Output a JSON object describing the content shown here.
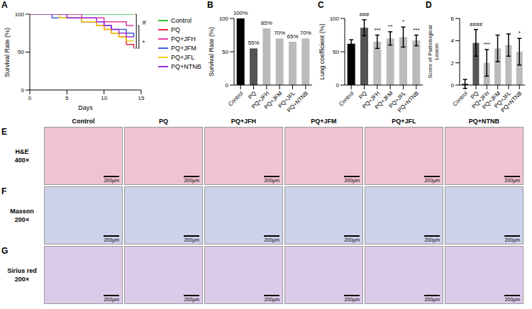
{
  "chart_data": [
    {
      "panel": "A",
      "type": "line",
      "line_style": "step",
      "x_label": "Days",
      "y_label": "Survival Rate (%)",
      "x": [
        0,
        3,
        4,
        5,
        7,
        9,
        10,
        11,
        12,
        13,
        14
      ],
      "xlim": [
        0,
        15
      ],
      "xticks": [
        0,
        5,
        10,
        15
      ],
      "ylim": [
        0,
        100
      ],
      "yticks": [
        0,
        50,
        100
      ],
      "legend": "right",
      "series": [
        {
          "name": "Control",
          "color": "#2fbf3a",
          "values": [
            100,
            100,
            100,
            100,
            100,
            100,
            100,
            100,
            100,
            100,
            100
          ]
        },
        {
          "name": "PQ",
          "color": "#e8253f",
          "values": [
            100,
            100,
            100,
            95,
            90,
            85,
            80,
            75,
            70,
            60,
            55
          ]
        },
        {
          "name": "PQ+JFH",
          "color": "#e33ba3",
          "values": [
            100,
            100,
            100,
            100,
            95,
            95,
            90,
            90,
            90,
            85,
            85
          ]
        },
        {
          "name": "PQ+JFM",
          "color": "#3f5fd6",
          "values": [
            100,
            95,
            95,
            95,
            90,
            90,
            85,
            80,
            80,
            75,
            70
          ]
        },
        {
          "name": "PQ+JFL",
          "color": "#f2cf00",
          "values": [
            100,
            100,
            95,
            95,
            90,
            85,
            80,
            75,
            70,
            65,
            65
          ]
        },
        {
          "name": "PQ+NTNB",
          "color": "#9b2fd6",
          "values": [
            100,
            100,
            100,
            95,
            95,
            90,
            85,
            80,
            75,
            70,
            70
          ]
        }
      ],
      "annotations": [
        {
          "text": "#",
          "from": "Control",
          "to": "PQ"
        },
        {
          "text": "*",
          "from": "PQ+JFH",
          "to": "PQ"
        }
      ]
    },
    {
      "panel": "B",
      "type": "bar",
      "y_label": "Survival Rate (%)",
      "categories": [
        "Control",
        "PQ",
        "PQ+JFH",
        "PQ+JFM",
        "PQ+JFL",
        "PQ+NTNB"
      ],
      "values": [
        100,
        55,
        85,
        70,
        65,
        70
      ],
      "value_labels": [
        "100%",
        "55%",
        "85%",
        "70%",
        "65%",
        "70%"
      ],
      "data_labels": true,
      "ylim": [
        0,
        100
      ],
      "yticks": [
        0,
        50,
        100
      ],
      "colors": [
        "#000000",
        "#555555",
        "#bbbbbb",
        "#bbbbbb",
        "#bbbbbb",
        "#bbbbbb"
      ]
    },
    {
      "panel": "C",
      "type": "bar",
      "y_label": "Lung coefficient (%)",
      "categories": [
        "Control",
        "PQ",
        "PQ+JFH",
        "PQ+JFM",
        "PQ+JFL",
        "PQ+NTNB"
      ],
      "values": [
        62,
        86,
        65,
        70,
        72,
        67
      ],
      "errors": [
        6,
        12,
        10,
        10,
        15,
        8
      ],
      "ylim": [
        0,
        100
      ],
      "yticks": [
        0,
        50,
        100
      ],
      "colors": [
        "#000000",
        "#555555",
        "#bbbbbb",
        "#bbbbbb",
        "#bbbbbb",
        "#bbbbbb"
      ],
      "annotations": [
        {
          "category": "PQ",
          "text": "###"
        },
        {
          "category": "PQ+JFH",
          "text": "***"
        },
        {
          "category": "PQ+JFM",
          "text": "**"
        },
        {
          "category": "PQ+JFL",
          "text": "*"
        },
        {
          "category": "PQ+NTNB",
          "text": "***"
        }
      ]
    },
    {
      "panel": "D",
      "type": "bar",
      "y_label": "Score of Pathological Lesion",
      "categories": [
        "Control",
        "PQ",
        "PQ+JFH",
        "PQ+JFM",
        "PQ+JFL",
        "PQ+NTNB"
      ],
      "values": [
        0.1,
        3.8,
        2,
        3.3,
        3.6,
        3
      ],
      "errors": [
        0.4,
        1.2,
        1.2,
        1.2,
        1,
        1.2
      ],
      "ylim": [
        0,
        6
      ],
      "yticks": [
        0,
        2,
        4,
        6
      ],
      "colors": [
        "#000000",
        "#555555",
        "#bbbbbb",
        "#bbbbbb",
        "#bbbbbb",
        "#bbbbbb"
      ],
      "annotations": [
        {
          "category": "PQ",
          "text": "####"
        },
        {
          "category": "PQ+JFH",
          "text": "***"
        },
        {
          "category": "PQ+NTNB",
          "text": "*"
        }
      ]
    }
  ],
  "image_grid": {
    "columns": [
      "Control",
      "PQ",
      "PQ+JFH",
      "PQ+JFM",
      "PQ+JFL",
      "PQ+NTNB"
    ],
    "rows": [
      {
        "panel": "E",
        "stain": "H&E",
        "magnification": "400×",
        "color": "#f0c3d3"
      },
      {
        "panel": "F",
        "stain": "Masson",
        "magnification": "200×",
        "color": "#cdd2ea"
      },
      {
        "panel": "G",
        "stain": "Sirius red",
        "magnification": "200×",
        "color": "#dccbe8"
      }
    ],
    "scale_bar": "200μm"
  }
}
